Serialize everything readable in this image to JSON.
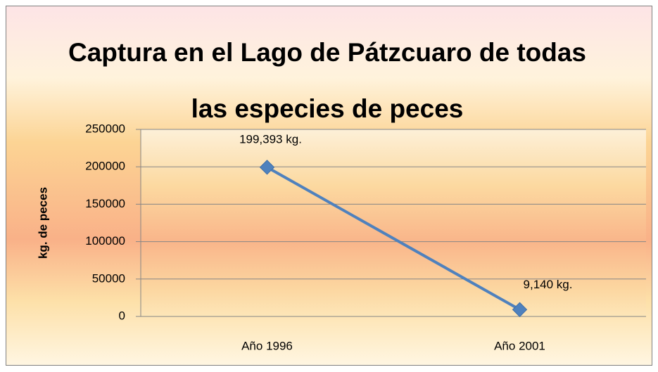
{
  "chart_data": {
    "type": "line",
    "title": "Captura en el Lago de Pátzcuaro de todas las especies de peces",
    "y_label": "kg. de peces",
    "categories": [
      "Año 1996",
      "Año 2001"
    ],
    "values": [
      199393,
      9140
    ],
    "value_labels": [
      "199,393 kg.",
      "9,140 kg."
    ],
    "color": "#4f81bd",
    "ylim": [
      0,
      250000
    ],
    "yticks": [
      0,
      50000,
      100000,
      150000,
      200000,
      250000
    ],
    "grid": true
  }
}
